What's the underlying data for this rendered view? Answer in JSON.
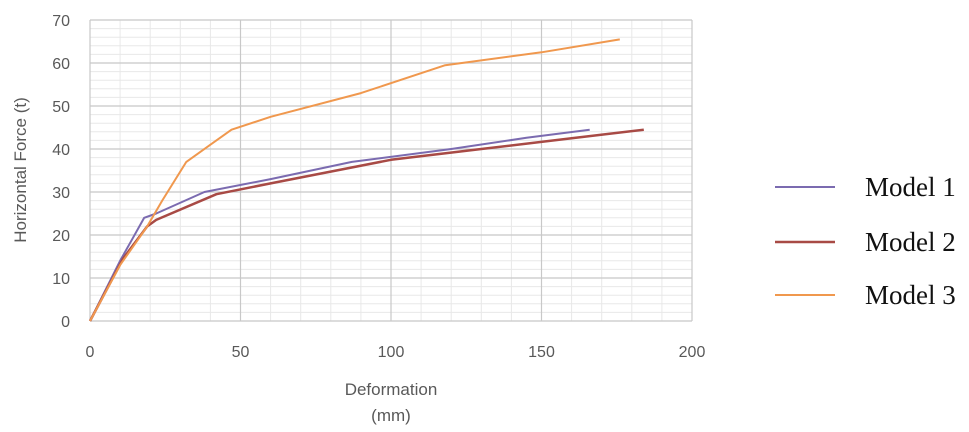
{
  "chart_data": {
    "type": "line",
    "title": "",
    "xlabel_lines": [
      "Deformation",
      "(mm)"
    ],
    "ylabel": "Horizontal Force (t)",
    "xlim": [
      0,
      200
    ],
    "ylim": [
      0,
      70
    ],
    "x_ticks": [
      0,
      50,
      100,
      150,
      200
    ],
    "y_ticks": [
      0,
      10,
      20,
      30,
      40,
      50,
      60,
      70
    ],
    "grid": true,
    "legend_position": "right",
    "series": [
      {
        "name": "Model 1",
        "color": "#7b6bb0",
        "points": [
          [
            0,
            0
          ],
          [
            10,
            14
          ],
          [
            18,
            24
          ],
          [
            22,
            25
          ],
          [
            38,
            30
          ],
          [
            60,
            33
          ],
          [
            87,
            37
          ],
          [
            120,
            40
          ],
          [
            145,
            42.6
          ],
          [
            166,
            44.5
          ]
        ]
      },
      {
        "name": "Model 2",
        "color": "#a84a45",
        "points": [
          [
            0,
            0
          ],
          [
            11,
            14.5
          ],
          [
            19,
            22
          ],
          [
            22,
            23.5
          ],
          [
            42,
            29.5
          ],
          [
            60,
            32
          ],
          [
            100,
            37.5
          ],
          [
            130,
            40
          ],
          [
            160,
            42.5
          ],
          [
            184,
            44.5
          ]
        ]
      },
      {
        "name": "Model 3",
        "color": "#f0984e",
        "points": [
          [
            0,
            0
          ],
          [
            10,
            13
          ],
          [
            19,
            22
          ],
          [
            24,
            28
          ],
          [
            32,
            37
          ],
          [
            40,
            41
          ],
          [
            47,
            44.5
          ],
          [
            60,
            47.5
          ],
          [
            90,
            53
          ],
          [
            118,
            59.5
          ],
          [
            150,
            62.5
          ],
          [
            176,
            65.5
          ]
        ]
      }
    ]
  }
}
